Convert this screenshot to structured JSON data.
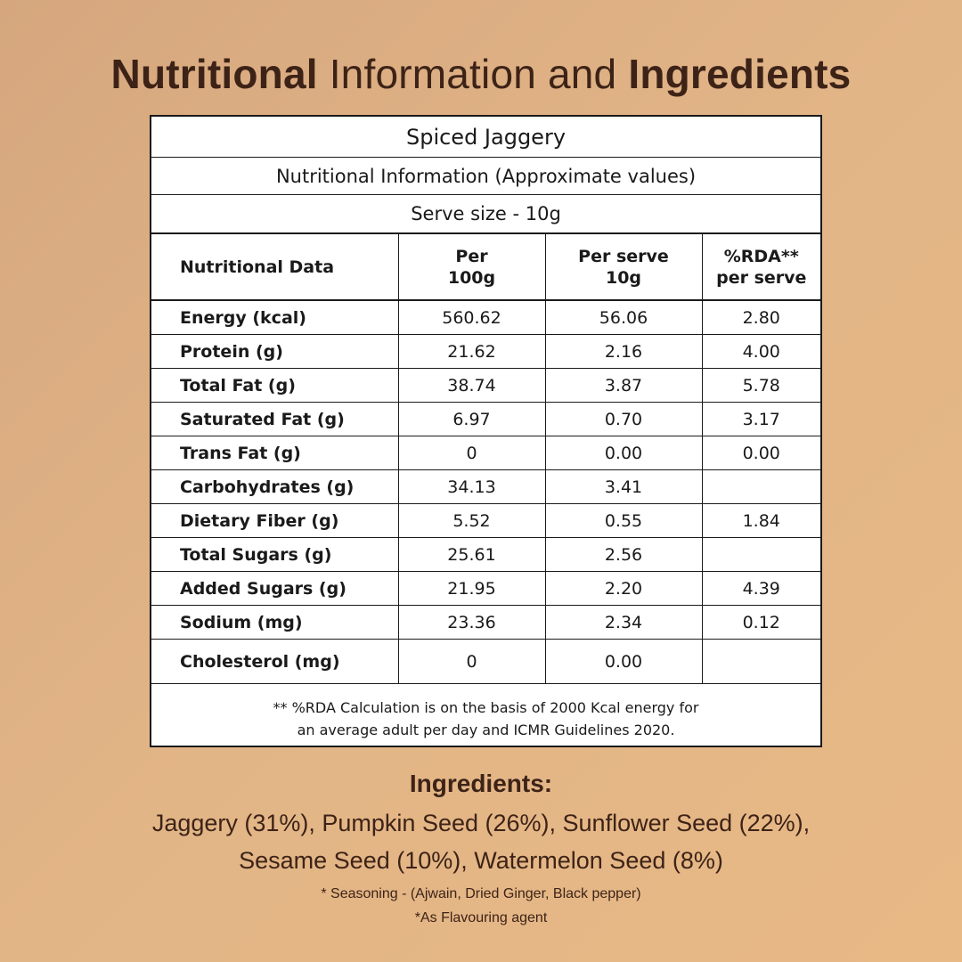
{
  "header": {
    "title_part1": "Nutritional",
    "title_part2": "Information and",
    "title_part3": "Ingredients"
  },
  "table": {
    "product_name": "Spiced Jaggery",
    "subtitle": "Nutritional Information (Approximate values)",
    "serve_size": "Serve size - 10g",
    "columns": [
      "Nutritional Data",
      "Per 100g",
      "Per serve 10g",
      "%RDA** per serve"
    ],
    "rows": [
      {
        "name": "Energy (kcal)",
        "per100": "560.62",
        "perServe": "56.06",
        "rda": "2.80"
      },
      {
        "name": "Protein (g)",
        "per100": "21.62",
        "perServe": "2.16",
        "rda": "4.00"
      },
      {
        "name": "Total Fat (g)",
        "per100": "38.74",
        "perServe": "3.87",
        "rda": "5.78"
      },
      {
        "name": "Saturated Fat (g)",
        "per100": "6.97",
        "perServe": "0.70",
        "rda": "3.17"
      },
      {
        "name": "Trans Fat (g)",
        "per100": "0",
        "perServe": "0.00",
        "rda": "0.00"
      },
      {
        "name": "Carbohydrates (g)",
        "per100": "34.13",
        "perServe": "3.41",
        "rda": ""
      },
      {
        "name": "Dietary Fiber (g)",
        "per100": "5.52",
        "perServe": "0.55",
        "rda": "1.84"
      },
      {
        "name": "Total Sugars (g)",
        "per100": "25.61",
        "perServe": "2.56",
        "rda": ""
      },
      {
        "name": "Added Sugars (g)",
        "per100": "21.95",
        "perServe": "2.20",
        "rda": "4.39"
      },
      {
        "name": "Sodium (mg)",
        "per100": "23.36",
        "perServe": "2.34",
        "rda": "0.12"
      },
      {
        "name": "Cholesterol (mg)",
        "per100": "0",
        "perServe": "0.00",
        "rda": ""
      }
    ],
    "footnote_line1": "** %RDA Calculation is on the basis of 2000 Kcal energy for",
    "footnote_line2": "an average adult per day and ICMR Guidelines 2020."
  },
  "ingredients": {
    "heading": "Ingredients:",
    "line1": "Jaggery (31%), Pumpkin Seed (26%), Sunflower Seed (22%),",
    "line2": "Sesame Seed (10%), Watermelon Seed (8%)",
    "note1": "* Seasoning - (Ajwain, Dried Ginger, Black pepper)",
    "note2": "*As Flavouring agent"
  }
}
